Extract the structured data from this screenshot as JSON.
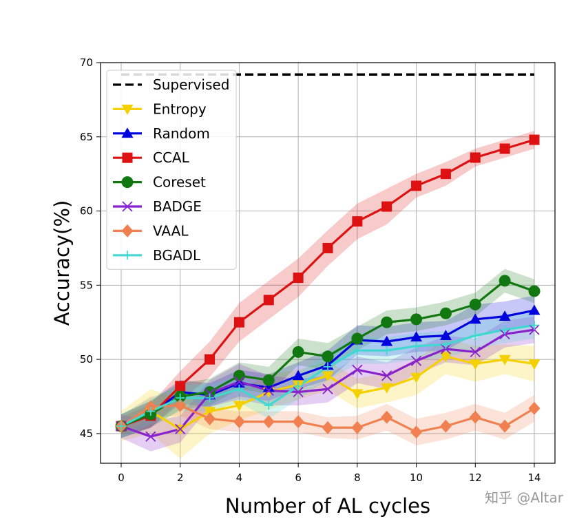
{
  "chart_data": {
    "type": "line",
    "title": "",
    "xlabel": "Number of AL cycles",
    "ylabel": "Accuracy(%)",
    "xlim": [
      -0.7,
      14.7
    ],
    "ylim": [
      43,
      70
    ],
    "xticks": [
      0,
      2,
      4,
      6,
      8,
      10,
      12,
      14
    ],
    "yticks": [
      45,
      50,
      55,
      60,
      65,
      70
    ],
    "grid": true,
    "legend_position": "top-left",
    "x": [
      0,
      1,
      2,
      3,
      4,
      5,
      6,
      7,
      8,
      9,
      10,
      11,
      12,
      13,
      14
    ],
    "series": [
      {
        "name": "Supervised",
        "color": "#000000",
        "marker": "none",
        "dashed": true,
        "constant": 69.2
      },
      {
        "name": "Entropy",
        "color": "#f5d000",
        "marker": "triangle-down",
        "values": [
          45.5,
          46.5,
          45.3,
          46.5,
          46.9,
          47.8,
          48.3,
          48.9,
          47.7,
          48.1,
          48.8,
          50.2,
          49.7,
          50.0,
          49.7
        ],
        "band": [
          1.0,
          1.5,
          2.0,
          1.5,
          1.0,
          1.2,
          1.0,
          1.0,
          1.0,
          1.0,
          1.2,
          1.2,
          1.2,
          1.0,
          1.2
        ]
      },
      {
        "name": "Random",
        "color": "#0000dd",
        "marker": "triangle-up",
        "values": [
          45.5,
          46.3,
          47.8,
          47.6,
          48.4,
          48.1,
          48.9,
          49.6,
          51.3,
          51.2,
          51.5,
          51.6,
          52.7,
          52.9,
          53.3
        ],
        "band": [
          0.8,
          0.9,
          0.8,
          0.8,
          0.9,
          0.9,
          0.9,
          1.0,
          1.0,
          1.0,
          1.0,
          1.0,
          1.0,
          1.0,
          1.0
        ]
      },
      {
        "name": "CCAL",
        "color": "#dd1111",
        "marker": "square",
        "values": [
          45.5,
          46.2,
          48.2,
          50.0,
          52.5,
          54.0,
          55.5,
          57.5,
          59.3,
          60.3,
          61.7,
          62.5,
          63.6,
          64.2,
          64.8
        ],
        "band": [
          0.6,
          0.8,
          1.0,
          1.2,
          1.3,
          1.3,
          1.3,
          1.2,
          1.2,
          1.2,
          0.8,
          0.8,
          0.6,
          0.6,
          0.6
        ]
      },
      {
        "name": "Coreset",
        "color": "#117711",
        "marker": "circle",
        "values": [
          45.5,
          46.3,
          47.5,
          47.8,
          48.9,
          48.6,
          50.5,
          50.2,
          51.4,
          52.5,
          52.7,
          53.1,
          53.7,
          55.3,
          54.6
        ],
        "band": [
          0.8,
          0.9,
          0.9,
          0.9,
          0.9,
          0.9,
          0.9,
          0.9,
          0.8,
          0.8,
          0.8,
          0.8,
          0.8,
          0.8,
          0.8
        ]
      },
      {
        "name": "BADGE",
        "color": "#8822cc",
        "marker": "x",
        "values": [
          45.5,
          44.8,
          45.3,
          47.7,
          48.5,
          47.9,
          47.8,
          48.0,
          49.3,
          48.9,
          49.9,
          50.7,
          50.5,
          51.7,
          52.0
        ],
        "band": [
          0.8,
          1.0,
          0.9,
          0.9,
          1.2,
          1.0,
          0.9,
          0.9,
          0.9,
          0.9,
          0.9,
          0.9,
          0.9,
          0.9,
          0.9
        ]
      },
      {
        "name": "VAAL",
        "color": "#f08050",
        "marker": "diamond",
        "values": [
          45.5,
          46.8,
          46.9,
          46.0,
          45.8,
          45.8,
          45.8,
          45.4,
          45.4,
          46.1,
          45.1,
          45.5,
          46.1,
          45.5,
          46.7
        ],
        "band": [
          0.7,
          0.7,
          0.7,
          0.7,
          0.7,
          0.7,
          0.7,
          0.7,
          0.8,
          0.9,
          0.9,
          0.9,
          0.9,
          0.9,
          0.9
        ]
      },
      {
        "name": "BGADL",
        "color": "#40d8d0",
        "marker": "plus",
        "values": [
          45.5,
          46.5,
          47.4,
          47.4,
          48.0,
          46.9,
          48.2,
          49.5,
          50.6,
          50.6,
          50.9,
          51.0,
          51.6,
          52.0,
          52.3
        ],
        "band": [
          0.8,
          0.9,
          0.9,
          0.9,
          0.9,
          0.9,
          0.9,
          0.9,
          0.9,
          0.9,
          0.9,
          0.9,
          0.9,
          0.9,
          0.9
        ]
      }
    ]
  },
  "watermark": "知乎 @Altar"
}
